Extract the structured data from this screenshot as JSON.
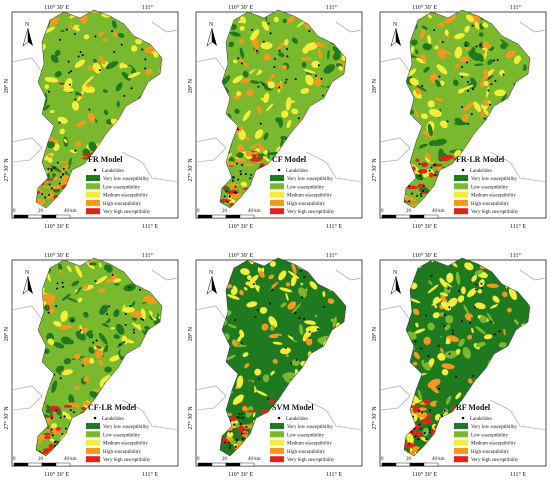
{
  "colors": {
    "very_low": "#1f7a1f",
    "low": "#7ab82e",
    "medium": "#f2ee3a",
    "high": "#f39a1e",
    "very_high": "#e2231a",
    "landslide": "#000000"
  },
  "axis_labels": {
    "top_left": "110° 30′ E",
    "top_right": "111°",
    "left_upper": "28° N",
    "left_lower": "27° 30′ N",
    "bottom_left": "110° 30′ E",
    "bottom_right": "111° E"
  },
  "legend": {
    "landslides": "Landslides",
    "items": [
      {
        "key": "very_low",
        "label": "Very low susceptibility"
      },
      {
        "key": "low",
        "label": "Low susceptibility"
      },
      {
        "key": "medium",
        "label": "Medium susceptibility"
      },
      {
        "key": "high",
        "label": "High susceptibility"
      },
      {
        "key": "very_high",
        "label": "Very high susceptibility"
      }
    ]
  },
  "scale": {
    "ticks": [
      "0",
      "20",
      "40 km"
    ]
  },
  "north": "N",
  "panels": [
    {
      "model": "FR Model"
    },
    {
      "model": "CF Model"
    },
    {
      "model": "FR-LR Model"
    },
    {
      "model": "CF-LR Model"
    },
    {
      "model": "SVM Model"
    },
    {
      "model": "RF Model"
    }
  ]
}
